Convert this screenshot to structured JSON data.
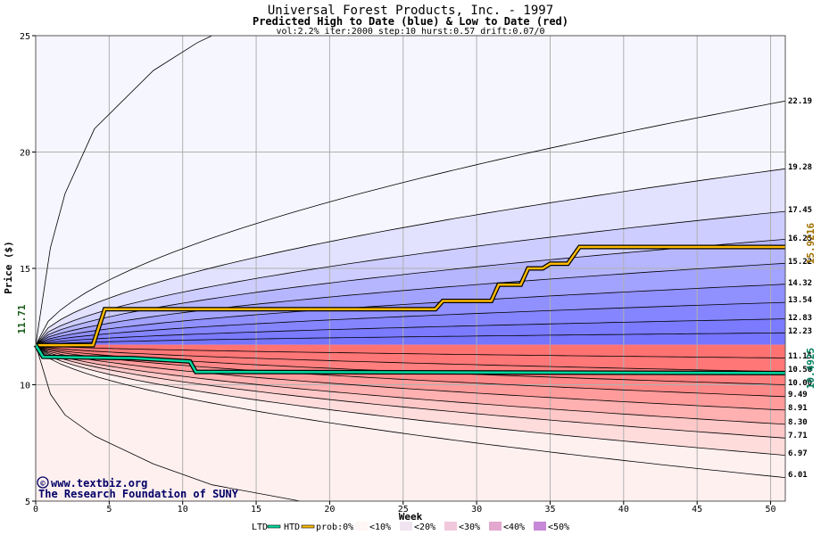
{
  "chart_data": {
    "type": "area",
    "title": "Universal Forest Products, Inc. - 1997",
    "subtitle": "Predicted High to Date (blue) &  Low to Date (red)",
    "params": "vol:2.2% iter:2000 step:10 hurst:0.57 drift:0.07/0",
    "xlabel": "Week",
    "ylabel": "Price ($)",
    "xlim": [
      0,
      51
    ],
    "ylim": [
      5,
      25
    ],
    "xticks": [
      0,
      5,
      10,
      15,
      20,
      25,
      30,
      35,
      40,
      45,
      50
    ],
    "yticks": [
      5,
      10,
      15,
      20,
      25
    ],
    "grid": true,
    "start_price": 11.71,
    "start_price_label": "11.71",
    "last_high": 15.9216,
    "last_high_label": "15.9216",
    "last_low": 10.4925,
    "last_low_label": "10.4925",
    "high_percentile_finals": [
      22.19,
      19.28,
      17.45,
      16.25,
      15.22,
      14.32,
      13.54,
      12.83,
      12.23
    ],
    "high_percentile_labels": [
      "22.19",
      "19.28",
      "17.45",
      "16.25",
      "15.22",
      "14.32",
      "13.54",
      "12.83",
      "12.23"
    ],
    "low_percentile_finals": [
      11.15,
      10.56,
      10.0,
      9.49,
      8.91,
      8.3,
      7.71,
      6.97,
      6.01
    ],
    "low_percentile_labels": [
      "11.15",
      "10.56",
      "10.00",
      "9.49",
      "8.91",
      "8.30",
      "7.71",
      "6.97",
      "6.01"
    ],
    "outer_high_week4": 21.0,
    "outer_high_week12": 25.0,
    "outer_low_week4": 7.8,
    "outer_low_week18": 5.0,
    "htd_series": {
      "name": "HTD",
      "color": "#ffbb00",
      "weeks": [
        0,
        3.9,
        4.7,
        27.2,
        27.7,
        31.0,
        31.5,
        33.0,
        33.5,
        34.5,
        35.0,
        36.2,
        37.0,
        51
      ],
      "values": [
        11.7,
        11.7,
        13.25,
        13.25,
        13.6,
        13.6,
        14.3,
        14.3,
        15.0,
        15.0,
        15.2,
        15.2,
        15.92,
        15.92
      ]
    },
    "ltd_series": {
      "name": "LTD",
      "color": "#00d8a0",
      "weeks": [
        0,
        0.5,
        6,
        6.5,
        10.5,
        10.9,
        51
      ],
      "values": [
        11.71,
        11.2,
        11.15,
        11.15,
        11.0,
        10.55,
        10.5
      ]
    },
    "legend": {
      "ltd": "LTD",
      "htd": "HTD",
      "prob": "prob:0%",
      "items": [
        "<10%",
        "<20%",
        "<30%",
        "<40%",
        "<50%"
      ]
    },
    "high_fill_colors": [
      "#f6f6ff",
      "#e2e2ff",
      "#cdcdff",
      "#b6b6ff",
      "#a2a2ff",
      "#9090ff",
      "#8585ff",
      "#7b7bff",
      "#7575ff"
    ],
    "low_fill_colors": [
      "#fff0f0",
      "#ffdcdc",
      "#ffc8c8",
      "#ffb0b0",
      "#ff9b9b",
      "#ff8888",
      "#ff7e7e",
      "#ff7777",
      "#ff7272"
    ],
    "legend_swatch_colors": [
      "#fff6f6",
      "#f0e4f0",
      "#f2c8dc",
      "#e3a8d0",
      "#c888d8"
    ]
  },
  "watermark": {
    "line1": "www.textbiz.org",
    "line2": "The Research Foundation of SUNY",
    "copyright_symbol": "©"
  }
}
